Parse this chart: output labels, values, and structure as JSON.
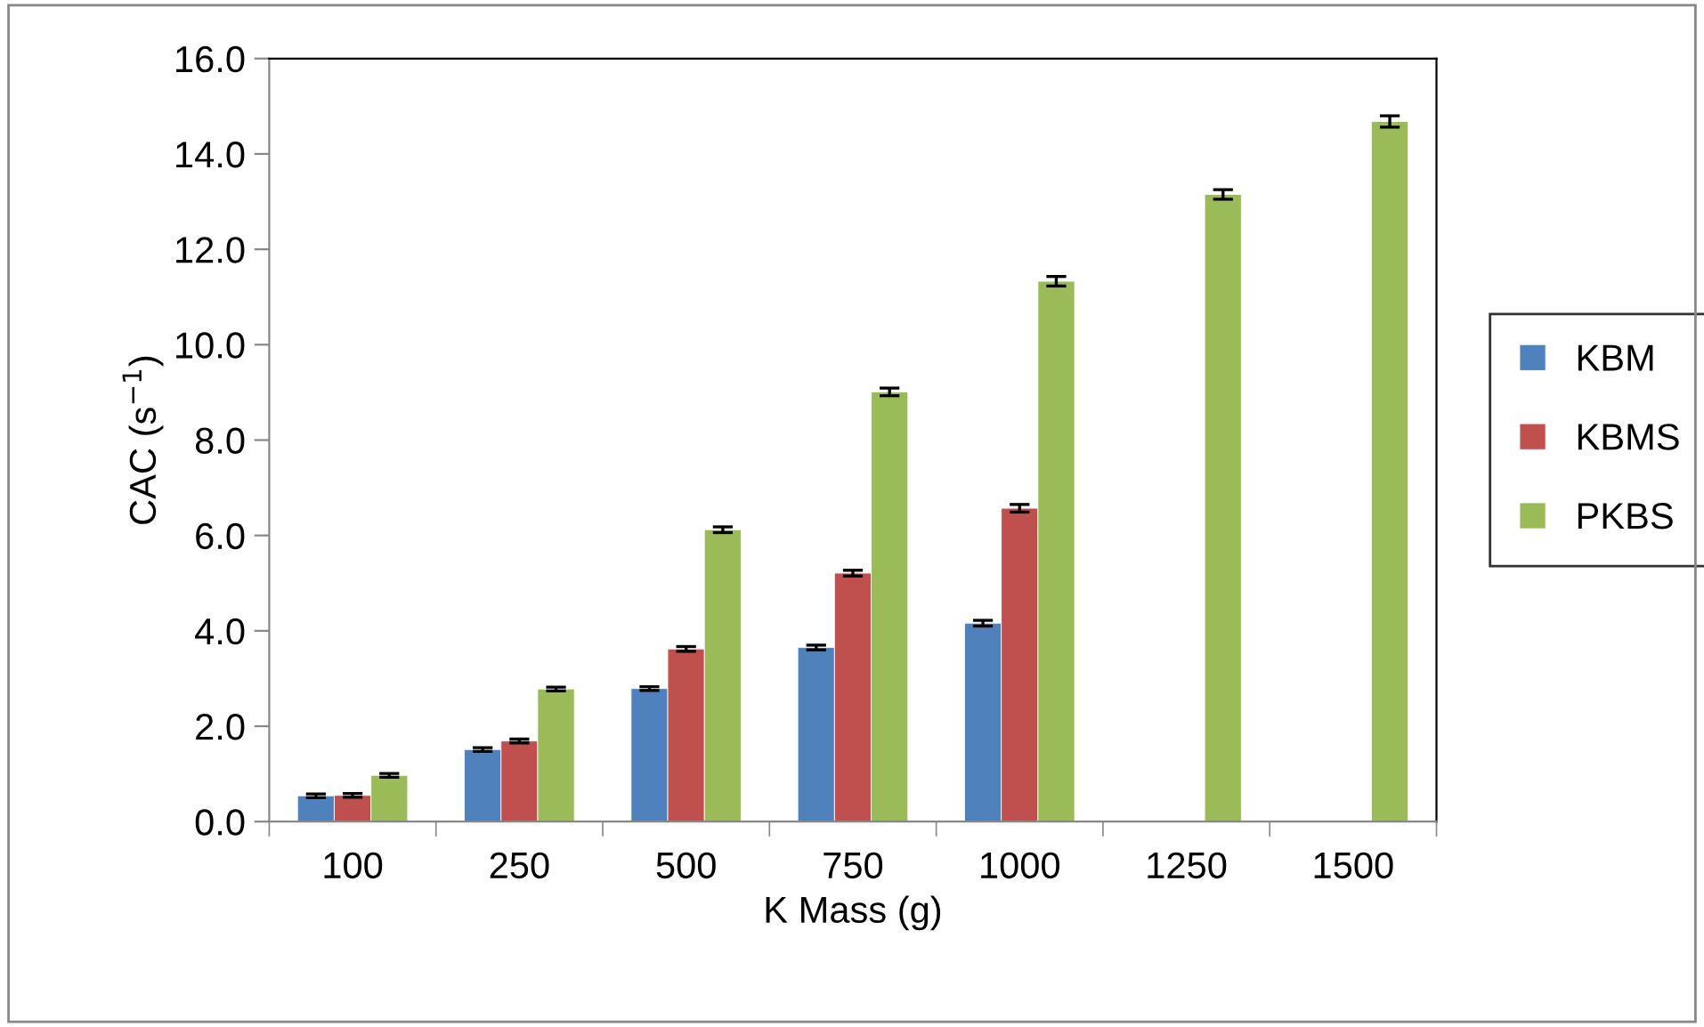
{
  "chart_data": {
    "type": "bar",
    "xlabel": "K Mass (g)",
    "ylabel": "CAC (s$^{−1}$)",
    "categories": [
      "100",
      "250",
      "500",
      "750",
      "1000",
      "1250",
      "1500"
    ],
    "series": [
      {
        "name": "KBM",
        "color": "#4f81bd",
        "values": [
          0.54,
          1.51,
          2.79,
          3.65,
          4.16,
          null,
          null
        ],
        "errors": [
          0.04,
          0.04,
          0.04,
          0.05,
          0.06,
          null,
          null
        ]
      },
      {
        "name": "KBMS",
        "color": "#c0504d",
        "values": [
          0.55,
          1.69,
          3.62,
          5.21,
          6.57,
          null,
          null
        ],
        "errors": [
          0.04,
          0.04,
          0.05,
          0.06,
          0.08,
          null,
          null
        ]
      },
      {
        "name": "PKBS",
        "color": "#9bbb59",
        "values": [
          0.97,
          2.78,
          6.12,
          9.01,
          11.33,
          13.15,
          14.68
        ],
        "errors": [
          0.04,
          0.04,
          0.06,
          0.08,
          0.1,
          0.1,
          0.12
        ]
      }
    ],
    "ylim": [
      0,
      16
    ],
    "yticks": [
      {
        "value": 0,
        "label": "0.0"
      },
      {
        "value": 2,
        "label": "2.0"
      },
      {
        "value": 4,
        "label": "4.0"
      },
      {
        "value": 6,
        "label": "6.0"
      },
      {
        "value": 8,
        "label": "8.0"
      },
      {
        "value": 10,
        "label": "10.0"
      },
      {
        "value": 12,
        "label": "12.0"
      },
      {
        "value": 14,
        "label": "14.0"
      },
      {
        "value": 16,
        "label": "16.0"
      }
    ],
    "grid": false,
    "legend": "right"
  }
}
